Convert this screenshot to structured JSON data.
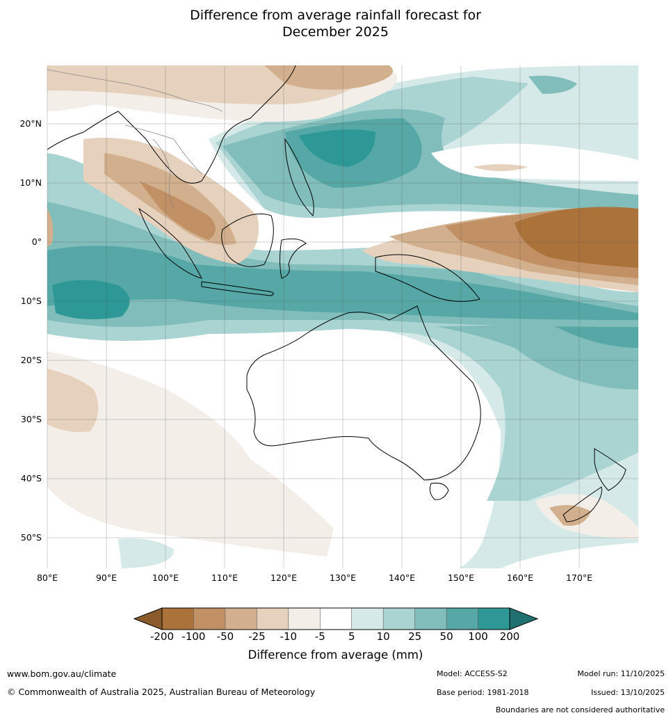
{
  "title": {
    "line1": "Difference from average rainfall forecast for",
    "line2": "December 2025"
  },
  "map": {
    "lat_labels": [
      "20°N",
      "10°N",
      "0°",
      "10°S",
      "20°S",
      "30°S",
      "40°S",
      "50°S"
    ],
    "lon_labels": [
      "80°E",
      "90°E",
      "100°E",
      "110°E",
      "120°E",
      "130°E",
      "140°E",
      "150°E",
      "160°E",
      "170°E"
    ]
  },
  "legend": {
    "title": "Difference from average (mm)",
    "tick_labels": [
      "-200",
      "-100",
      "-50",
      "-25",
      "-10",
      "-5",
      "5",
      "10",
      "25",
      "50",
      "100",
      "200"
    ],
    "colors": [
      "#8b5a2b",
      "#ab723a",
      "#c19064",
      "#d2b08d",
      "#e6d1bd",
      "#f3eee8",
      "#ffffff",
      "#d5eae8",
      "#aad4d2",
      "#80bdbb",
      "#55a8a6",
      "#2d9895",
      "#1f716f"
    ]
  },
  "footer": {
    "website": "www.bom.gov.au/climate",
    "copyright": "© Commonwealth of Australia 2025, Australian Bureau of Meteorology",
    "model": "Model: ACCESS-S2",
    "base_period": "Base period: 1981-2018",
    "model_run": "Model run: 11/10/2025",
    "issued": "Issued: 13/10/2025",
    "disclaimer": "Boundaries are not considered authoritative"
  }
}
